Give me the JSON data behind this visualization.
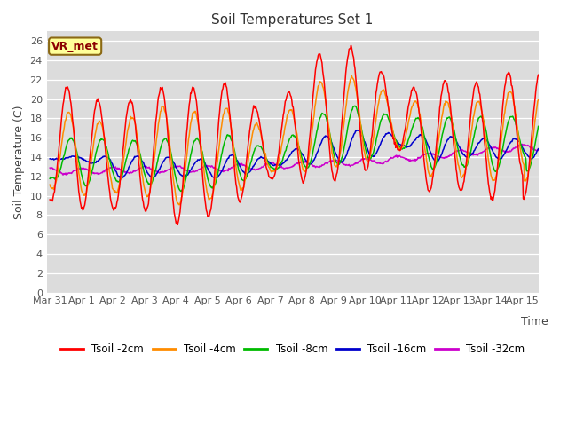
{
  "title": "Soil Temperatures Set 1",
  "xlabel": "Time",
  "ylabel": "Soil Temperature (C)",
  "ylim": [
    0,
    27
  ],
  "yticks": [
    0,
    2,
    4,
    6,
    8,
    10,
    12,
    14,
    16,
    18,
    20,
    22,
    24,
    26
  ],
  "date_labels": [
    "Mar 31",
    "Apr 1",
    "Apr 2",
    "Apr 3",
    "Apr 4",
    "Apr 5",
    "Apr 6",
    "Apr 7",
    "Apr 8",
    "Apr 9",
    "Apr 10",
    "Apr 11",
    "Apr 12",
    "Apr 13",
    "Apr 14",
    "Apr 15"
  ],
  "annotation_text": "VR_met",
  "annotation_bg": "#FFFF99",
  "annotation_border": "#8B6914",
  "bg_color": "#DCDCDC",
  "line_colors": {
    "2cm": "#FF0000",
    "4cm": "#FF8C00",
    "8cm": "#00BB00",
    "16cm": "#0000CC",
    "32cm": "#CC00CC"
  },
  "legend_labels": [
    "Tsoil -2cm",
    "Tsoil -4cm",
    "Tsoil -8cm",
    "Tsoil -16cm",
    "Tsoil -32cm"
  ]
}
